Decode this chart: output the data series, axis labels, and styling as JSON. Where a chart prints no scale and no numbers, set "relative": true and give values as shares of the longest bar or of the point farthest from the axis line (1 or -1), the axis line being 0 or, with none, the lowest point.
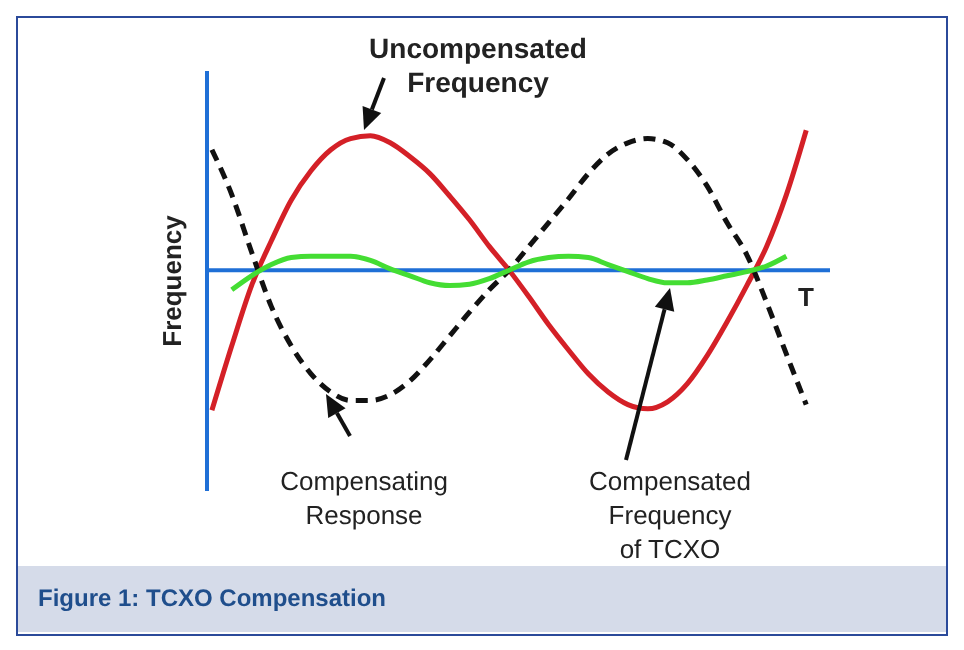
{
  "chart_data": {
    "type": "line",
    "title": "Figure 1: TCXO Compensation",
    "xlabel": "T",
    "ylabel": "Frequency",
    "relative": true,
    "grid": false,
    "ref_lines": [
      {
        "axis": "y",
        "value": 0,
        "color": "#1f6fd6"
      }
    ],
    "annotations": [
      "Uncompensated Frequency",
      "Compensating Response",
      "Compensated Frequency of TCXO"
    ],
    "categories": [
      null,
      null,
      null,
      null,
      null,
      null,
      null,
      null,
      null,
      null,
      null,
      null,
      null,
      null,
      null,
      null,
      null,
      null,
      null,
      null,
      null,
      null,
      null,
      null,
      null,
      null,
      null,
      null,
      null,
      null,
      null,
      null
    ],
    "series": [
      {
        "color": "#d42027",
        "line_style": "solid",
        "values": [
          -1,
          -0.54,
          -0.11,
          0.21,
          0.5,
          0.71,
          0.86,
          0.94,
          0.96,
          0.91,
          0.81,
          0.69,
          0.53,
          0.36,
          0.17,
          0,
          -0.19,
          -0.39,
          -0.57,
          -0.74,
          -0.87,
          -0.96,
          -0.99,
          -0.94,
          -0.81,
          -0.61,
          -0.37,
          -0.11,
          0.17,
          0.54,
          1,
          null
        ]
      },
      {
        "color": "#111111",
        "line_style": "dashed",
        "values": [
          0.86,
          0.54,
          0.13,
          -0.26,
          -0.54,
          -0.74,
          -0.87,
          -0.93,
          -0.93,
          -0.89,
          -0.79,
          -0.64,
          -0.47,
          -0.3,
          -0.14,
          0,
          0.17,
          0.34,
          0.51,
          0.69,
          0.83,
          0.91,
          0.94,
          0.91,
          0.79,
          0.6,
          0.34,
          0.11,
          -0.23,
          -0.6,
          -0.96,
          null
        ]
      },
      {
        "color": "#44dd33",
        "line_style": "solid",
        "values": [
          null,
          -0.14,
          -0.04,
          0.04,
          0.09,
          0.1,
          0.1,
          0.1,
          0.07,
          0.01,
          -0.04,
          -0.09,
          -0.11,
          -0.1,
          -0.06,
          0,
          0.06,
          0.09,
          0.1,
          0.09,
          0.04,
          -0.01,
          -0.06,
          -0.09,
          -0.09,
          -0.07,
          -0.04,
          -0.01,
          0.03,
          0.1,
          null,
          null
        ]
      }
    ]
  }
}
